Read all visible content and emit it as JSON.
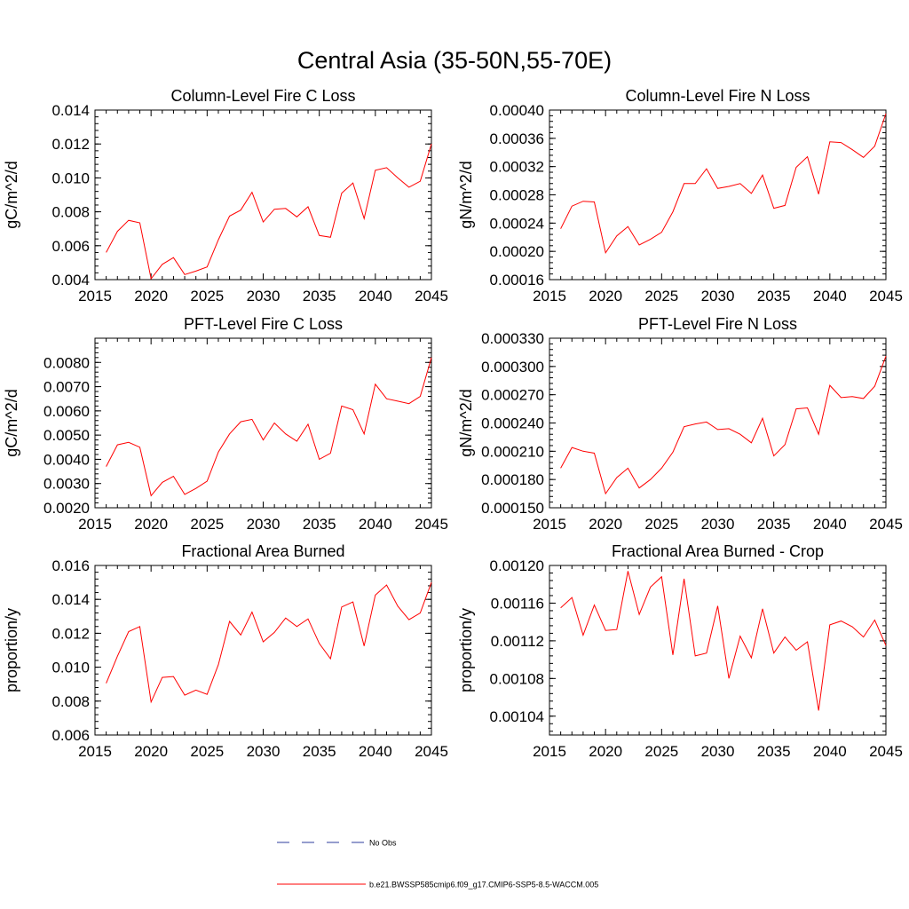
{
  "figure_title": "Central Asia (35-50N,55-70E)",
  "colors": {
    "model_line": "#ff0000",
    "obs_line": "#2c3e9c",
    "axis": "#000000"
  },
  "legend": {
    "obs_label": "No Obs",
    "model_label": "b.e21.BWSSP585cmip6.f09_g17.CMIP6-SSP5-8.5-WACCM.005"
  },
  "chart_data": [
    {
      "type": "line",
      "title": "Column-Level Fire C Loss",
      "ylabel": "gC/m^2/d",
      "xlabel": "",
      "xlim": [
        2015,
        2045
      ],
      "ylim": [
        0.004,
        0.014
      ],
      "xticks": [
        "2015",
        "2020",
        "2025",
        "2030",
        "2035",
        "2040",
        "2045"
      ],
      "yticks": [
        "0.004",
        "0.006",
        "0.008",
        "0.010",
        "0.012",
        "0.014"
      ],
      "x": [
        2016,
        2017,
        2018,
        2019,
        2020,
        2021,
        2022,
        2023,
        2024,
        2025,
        2026,
        2027,
        2028,
        2029,
        2030,
        2031,
        2032,
        2033,
        2034,
        2035,
        2036,
        2037,
        2038,
        2039,
        2040,
        2041,
        2042,
        2043,
        2044,
        2045
      ],
      "values": [
        0.0056,
        0.00685,
        0.0075,
        0.00735,
        0.00405,
        0.0049,
        0.0053,
        0.0043,
        0.0045,
        0.00475,
        0.00635,
        0.00775,
        0.0081,
        0.00915,
        0.0074,
        0.00815,
        0.0082,
        0.0077,
        0.0083,
        0.0066,
        0.0065,
        0.0091,
        0.0097,
        0.0076,
        0.01045,
        0.0106,
        0.01,
        0.00945,
        0.0098,
        0.012
      ]
    },
    {
      "type": "line",
      "title": "Column-Level Fire N Loss",
      "ylabel": "gN/m^2/d",
      "xlabel": "",
      "xlim": [
        2015,
        2045
      ],
      "ylim": [
        0.00016,
        0.0004
      ],
      "xticks": [
        "2015",
        "2020",
        "2025",
        "2030",
        "2035",
        "2040",
        "2045"
      ],
      "yticks": [
        "0.00016",
        "0.00020",
        "0.00024",
        "0.00028",
        "0.00032",
        "0.00036",
        "0.00040"
      ],
      "x": [
        2016,
        2017,
        2018,
        2019,
        2020,
        2021,
        2022,
        2023,
        2024,
        2025,
        2026,
        2027,
        2028,
        2029,
        2030,
        2031,
        2032,
        2033,
        2034,
        2035,
        2036,
        2037,
        2038,
        2039,
        2040,
        2041,
        2042,
        2043,
        2044,
        2045
      ],
      "values": [
        0.000232,
        0.000264,
        0.000271,
        0.00027,
        0.000198,
        0.000222,
        0.000235,
        0.000209,
        0.000217,
        0.000227,
        0.000256,
        0.000296,
        0.000296,
        0.000317,
        0.000289,
        0.000292,
        0.000296,
        0.000282,
        0.000308,
        0.000261,
        0.000265,
        0.000319,
        0.000334,
        0.000281,
        0.000355,
        0.000354,
        0.000344,
        0.000333,
        0.000349,
        0.000395
      ]
    },
    {
      "type": "line",
      "title": "PFT-Level Fire C Loss",
      "ylabel": "gC/m^2/d",
      "xlabel": "",
      "xlim": [
        2015,
        2045
      ],
      "ylim": [
        0.002,
        0.009
      ],
      "xticks": [
        "2015",
        "2020",
        "2025",
        "2030",
        "2035",
        "2040",
        "2045"
      ],
      "yticks": [
        "0.0020",
        "0.0030",
        "0.0040",
        "0.0050",
        "0.0060",
        "0.0070",
        "0.0080"
      ],
      "x": [
        2016,
        2017,
        2018,
        2019,
        2020,
        2021,
        2022,
        2023,
        2024,
        2025,
        2026,
        2027,
        2028,
        2029,
        2030,
        2031,
        2032,
        2033,
        2034,
        2035,
        2036,
        2037,
        2038,
        2039,
        2040,
        2041,
        2042,
        2043,
        2044,
        2045
      ],
      "values": [
        0.0037,
        0.0046,
        0.0047,
        0.0045,
        0.0025,
        0.00305,
        0.0033,
        0.00255,
        0.0028,
        0.0031,
        0.0043,
        0.00505,
        0.00555,
        0.00565,
        0.0048,
        0.0055,
        0.00505,
        0.00475,
        0.00545,
        0.004,
        0.00425,
        0.0062,
        0.00605,
        0.00505,
        0.0071,
        0.0065,
        0.0064,
        0.0063,
        0.0066,
        0.0082
      ]
    },
    {
      "type": "line",
      "title": "PFT-Level Fire N Loss",
      "ylabel": "gN/m^2/d",
      "xlabel": "",
      "xlim": [
        2015,
        2045
      ],
      "ylim": [
        0.00015,
        0.00033
      ],
      "xticks": [
        "2015",
        "2020",
        "2025",
        "2030",
        "2035",
        "2040",
        "2045"
      ],
      "yticks": [
        "0.000150",
        "0.000180",
        "0.000210",
        "0.000240",
        "0.000270",
        "0.000300",
        "0.000330"
      ],
      "x": [
        2016,
        2017,
        2018,
        2019,
        2020,
        2021,
        2022,
        2023,
        2024,
        2025,
        2026,
        2027,
        2028,
        2029,
        2030,
        2031,
        2032,
        2033,
        2034,
        2035,
        2036,
        2037,
        2038,
        2039,
        2040,
        2041,
        2042,
        2043,
        2044,
        2045
      ],
      "values": [
        0.000192,
        0.000214,
        0.00021,
        0.000208,
        0.000165,
        0.000182,
        0.000192,
        0.000171,
        0.00018,
        0.000192,
        0.000209,
        0.000236,
        0.000239,
        0.000241,
        0.000233,
        0.000234,
        0.000228,
        0.000219,
        0.000245,
        0.000205,
        0.000217,
        0.000255,
        0.000256,
        0.000228,
        0.00028,
        0.000267,
        0.000268,
        0.000266,
        0.000279,
        0.000311
      ]
    },
    {
      "type": "line",
      "title": "Fractional Area Burned",
      "ylabel": "proportion/y",
      "xlabel": "",
      "xlim": [
        2015,
        2045
      ],
      "ylim": [
        0.006,
        0.016
      ],
      "xticks": [
        "2015",
        "2020",
        "2025",
        "2030",
        "2035",
        "2040",
        "2045"
      ],
      "yticks": [
        "0.006",
        "0.008",
        "0.010",
        "0.012",
        "0.014",
        "0.016"
      ],
      "x": [
        2016,
        2017,
        2018,
        2019,
        2020,
        2021,
        2022,
        2023,
        2024,
        2025,
        2026,
        2027,
        2028,
        2029,
        2030,
        2031,
        2032,
        2033,
        2034,
        2035,
        2036,
        2037,
        2038,
        2039,
        2040,
        2041,
        2042,
        2043,
        2044,
        2045
      ],
      "values": [
        0.00905,
        0.01065,
        0.0121,
        0.0124,
        0.00795,
        0.0094,
        0.00945,
        0.00835,
        0.00865,
        0.0084,
        0.01015,
        0.0127,
        0.0119,
        0.01325,
        0.0115,
        0.01205,
        0.0129,
        0.0124,
        0.01285,
        0.0114,
        0.0105,
        0.01355,
        0.01385,
        0.01125,
        0.01425,
        0.01485,
        0.0136,
        0.0128,
        0.0132,
        0.015
      ]
    },
    {
      "type": "line",
      "title": "Fractional Area Burned - Crop",
      "ylabel": "proportion/y",
      "xlabel": "",
      "xlim": [
        2015,
        2045
      ],
      "ylim": [
        0.00102,
        0.0012
      ],
      "xticks": [
        "2015",
        "2020",
        "2025",
        "2030",
        "2035",
        "2040",
        "2045"
      ],
      "yticks": [
        "0.00104",
        "0.00108",
        "0.00112",
        "0.00116",
        "0.00120"
      ],
      "x": [
        2016,
        2017,
        2018,
        2019,
        2020,
        2021,
        2022,
        2023,
        2024,
        2025,
        2026,
        2027,
        2028,
        2029,
        2030,
        2031,
        2032,
        2033,
        2034,
        2035,
        2036,
        2037,
        2038,
        2039,
        2040,
        2041,
        2042,
        2043,
        2044,
        2045
      ],
      "values": [
        0.001155,
        0.001166,
        0.001126,
        0.001158,
        0.001131,
        0.001132,
        0.001194,
        0.001148,
        0.001177,
        0.001188,
        0.001105,
        0.001186,
        0.001104,
        0.001107,
        0.001157,
        0.00108,
        0.001125,
        0.001102,
        0.001154,
        0.001107,
        0.001124,
        0.00111,
        0.001119,
        0.001046,
        0.001137,
        0.001141,
        0.001135,
        0.001124,
        0.001142,
        0.001115
      ]
    }
  ]
}
